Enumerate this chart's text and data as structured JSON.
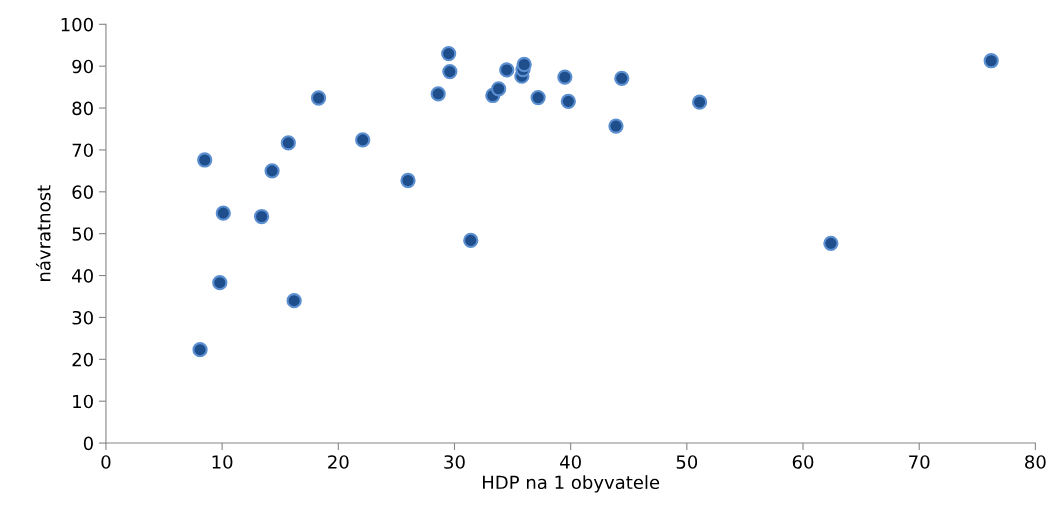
{
  "chart_data": {
    "type": "scatter",
    "xlabel": "HDP na 1 obyvatele",
    "ylabel": "návratnost",
    "xlim": [
      0,
      80
    ],
    "xticks": [
      0,
      10,
      20,
      30,
      40,
      50,
      60,
      70,
      80
    ],
    "ylim": [
      0,
      100
    ],
    "yticks": [
      0,
      10,
      20,
      30,
      40,
      50,
      60,
      70,
      80,
      90,
      100
    ],
    "grid": false,
    "legend": false,
    "marker": "circle",
    "series": [
      {
        "color": "#1f4e8c",
        "x": [
          8.1,
          8.5,
          9.8,
          10.1,
          13.4,
          14.3,
          15.7,
          16.2,
          18.3,
          22.1,
          26.0,
          28.6,
          29.5,
          29.6,
          31.4,
          33.3,
          33.8,
          34.5,
          35.8,
          35.9,
          36.0,
          39.5,
          37.2,
          39.8,
          43.9,
          44.4,
          51.1,
          62.4,
          76.2
        ],
        "values": [
          22.3,
          67.6,
          38.3,
          54.9,
          54.1,
          65.0,
          71.7,
          34.0,
          82.4,
          72.4,
          62.7,
          83.4,
          93.0,
          88.7,
          48.4,
          83.0,
          84.6,
          89.1,
          87.6,
          89.2,
          90.4,
          87.4,
          82.5,
          81.6,
          75.7,
          87.1,
          81.4,
          47.7,
          91.3
        ]
      }
    ]
  }
}
